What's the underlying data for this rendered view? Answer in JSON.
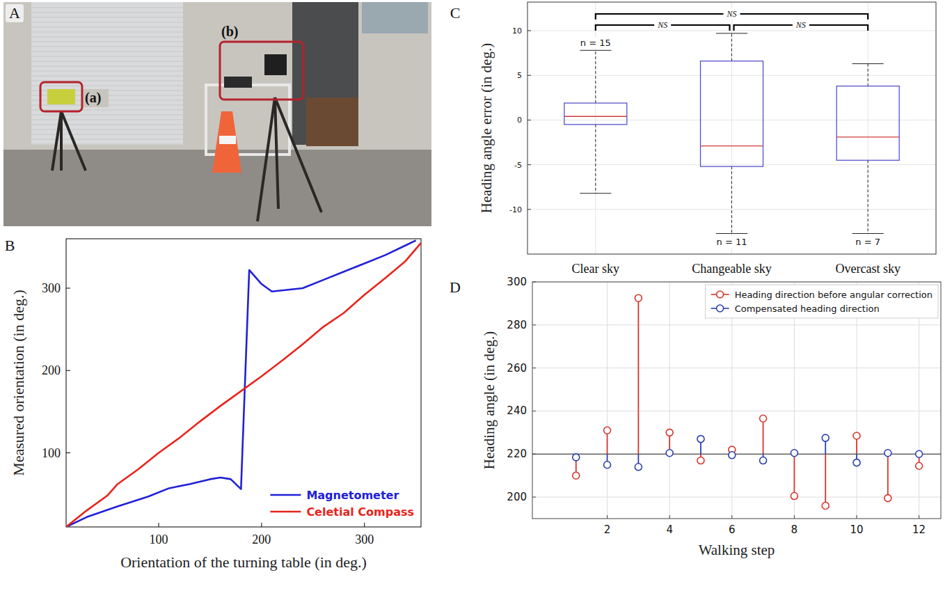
{
  "photo": {
    "panel": "A",
    "labels": [
      "(a)",
      "(b)"
    ]
  },
  "chart_data": [
    {
      "type": "line",
      "panel": "B",
      "x_label": "Orientation of the turning table (in deg.)",
      "y_label": "Measured orientation (in deg.)",
      "xlim": [
        10,
        355
      ],
      "ylim": [
        10,
        360
      ],
      "xticks": [
        100,
        200,
        300
      ],
      "yticks": [
        100,
        200,
        300
      ],
      "grid": false,
      "legend": "lower right",
      "series": [
        {
          "name": "Magnetometer",
          "color": "#2020d8",
          "x": [
            10,
            30,
            60,
            90,
            110,
            130,
            150,
            160,
            170,
            180,
            188,
            200,
            210,
            240,
            260,
            280,
            300,
            320,
            340,
            350
          ],
          "values": [
            10,
            22,
            35,
            47,
            57,
            62,
            68,
            70,
            68,
            56,
            322,
            305,
            296,
            300,
            310,
            320,
            330,
            340,
            352,
            358
          ]
        },
        {
          "name": "Celetial Compass",
          "color": "#e8241c",
          "x": [
            10,
            30,
            50,
            60,
            80,
            100,
            120,
            140,
            160,
            180,
            200,
            220,
            240,
            260,
            280,
            300,
            320,
            340,
            355
          ],
          "values": [
            10,
            30,
            48,
            62,
            80,
            100,
            118,
            138,
            157,
            175,
            193,
            212,
            232,
            253,
            270,
            292,
            312,
            333,
            355
          ]
        }
      ]
    },
    {
      "type": "box",
      "panel": "C",
      "y_label": "Heading angle error (in deg.)",
      "categories": [
        "Clear sky",
        "Changeable sky",
        "Overcast sky"
      ],
      "whisker_low": [
        -8.2,
        -12.7,
        -12.7
      ],
      "q1": [
        -0.5,
        -5.2,
        -4.5
      ],
      "median": [
        0.4,
        -2.9,
        -1.9
      ],
      "q3": [
        1.9,
        6.6,
        3.8
      ],
      "whisker_high": [
        7.8,
        9.7,
        6.3
      ],
      "n_labels": [
        "n = 15",
        "n = 11",
        "n = 7"
      ],
      "ylim": [
        -15,
        13.2
      ],
      "yticks": [
        -10,
        -5,
        0,
        5,
        10
      ],
      "grid": true,
      "color": "#4646c8",
      "annotations": [
        {
          "text": "NS",
          "from": 0,
          "to": 1
        },
        {
          "text": "NS",
          "from": 1,
          "to": 2
        },
        {
          "text": "NS",
          "from": 0,
          "to": 2
        }
      ]
    },
    {
      "type": "stem",
      "panel": "D",
      "x_label": "Walking step",
      "y_label": "Heading angle (in deg.)",
      "x": [
        1,
        2,
        3,
        4,
        5,
        6,
        7,
        8,
        9,
        10,
        11,
        12
      ],
      "xlim": [
        -0.4,
        12.7
      ],
      "ylim": [
        190,
        300
      ],
      "xticks": [
        2,
        4,
        6,
        8,
        10,
        12
      ],
      "yticks": [
        200,
        220,
        240,
        260,
        280,
        300
      ],
      "grid": true,
      "legend": "upper right",
      "reference": 220,
      "marker": "circle",
      "series": [
        {
          "name": "Heading direction before angular correction",
          "color": "#d9342b",
          "values": [
            210,
            231,
            292.5,
            230,
            217,
            222,
            236.5,
            200.5,
            196,
            228.5,
            199.5,
            214.5
          ]
        },
        {
          "name": "Compensated heading direction",
          "color": "#2a3fb0",
          "values": [
            218.5,
            215,
            214,
            220.5,
            227,
            219.5,
            217,
            220.5,
            227.5,
            216,
            220.5,
            220
          ]
        }
      ]
    }
  ]
}
